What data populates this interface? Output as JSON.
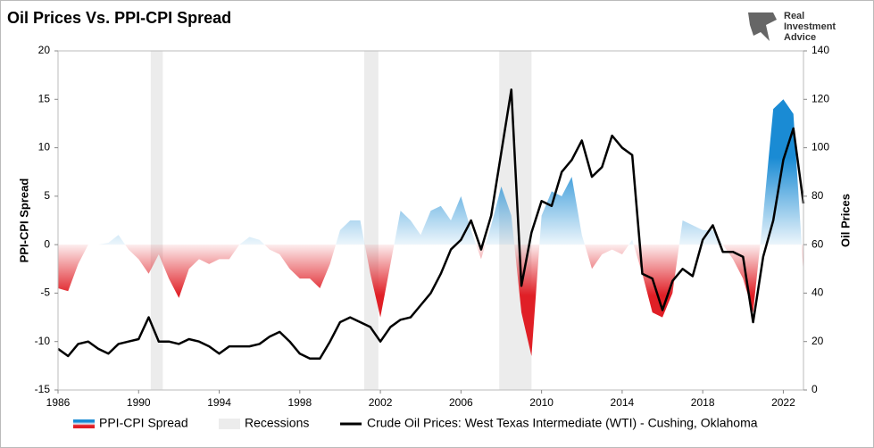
{
  "chart_data": {
    "type": "area",
    "title": "Oil Prices Vs. PPI-CPI Spread",
    "logo_lines": [
      "Real",
      "Investment",
      "Advice"
    ],
    "y_label": "PPI-CPI Spread",
    "y2_label": "Oil Prices",
    "xlim": [
      1986,
      2023
    ],
    "xticks": [
      1986,
      1990,
      1994,
      1998,
      2002,
      2006,
      2010,
      2014,
      2018,
      2022
    ],
    "ylim": [
      -15,
      20
    ],
    "yticks": [
      -15,
      -10,
      -5,
      0,
      5,
      10,
      15,
      20
    ],
    "y2lim": [
      0,
      140
    ],
    "y2ticks": [
      0,
      20,
      40,
      60,
      80,
      100,
      120,
      140
    ],
    "x": [
      1986,
      1986.5,
      1987,
      1987.5,
      1988,
      1988.5,
      1989,
      1989.5,
      1990,
      1990.5,
      1991,
      1991.5,
      1992,
      1992.5,
      1993,
      1993.5,
      1994,
      1994.5,
      1995,
      1995.5,
      1996,
      1996.5,
      1997,
      1997.5,
      1998,
      1998.5,
      1999,
      1999.5,
      2000,
      2000.5,
      2001,
      2001.5,
      2002,
      2002.5,
      2003,
      2003.5,
      2004,
      2004.5,
      2005,
      2005.5,
      2006,
      2006.5,
      2007,
      2007.5,
      2008,
      2008.5,
      2009,
      2009.5,
      2010,
      2010.5,
      2011,
      2011.5,
      2012,
      2012.5,
      2013,
      2013.5,
      2014,
      2014.5,
      2015,
      2015.5,
      2016,
      2016.5,
      2017,
      2017.5,
      2018,
      2018.5,
      2019,
      2019.5,
      2020,
      2020.5,
      2021,
      2021.5,
      2022,
      2022.5,
      2023
    ],
    "recessions": {
      "name": "Recessions",
      "color": "#ececec",
      "spans": [
        [
          1990.6,
          1991.2
        ],
        [
          2001.2,
          2001.9
        ],
        [
          2007.9,
          2009.5
        ]
      ]
    },
    "series": [
      {
        "name": "PPI-CPI Spread",
        "type": "area",
        "axis": "y",
        "color_positive": "#1a8bd4",
        "color_negative": "#e01f26",
        "values": [
          -4.5,
          -4.8,
          -2,
          0,
          0,
          0.2,
          1,
          -0.5,
          -1.5,
          -3,
          -1,
          -3.5,
          -5.5,
          -2.5,
          -1.5,
          -2,
          -1.5,
          -1.5,
          0,
          0.8,
          0.5,
          -0.5,
          -1,
          -2.5,
          -3.5,
          -3.5,
          -4.5,
          -2,
          1.5,
          2.5,
          2.5,
          -3,
          -7.5,
          -2,
          3.5,
          2.5,
          1,
          3.5,
          4,
          2.5,
          5,
          1.5,
          -1.5,
          2,
          6,
          3,
          -7,
          -11.5,
          3,
          5.5,
          5,
          7,
          1,
          -2.5,
          -1,
          -0.5,
          -1,
          0.5,
          -3,
          -7,
          -7.5,
          -5,
          2.5,
          2,
          1.5,
          1.5,
          0,
          -1.5,
          -3.5,
          -7,
          3,
          14,
          15,
          13.5,
          -3
        ]
      },
      {
        "name": "Crude Oil Prices: West Texas Intermediate (WTI) - Cushing, Oklahoma",
        "type": "line",
        "axis": "y2",
        "color": "#000000",
        "values": [
          17,
          14,
          19,
          20,
          17,
          15,
          19,
          20,
          21,
          30,
          20,
          20,
          19,
          21,
          20,
          18,
          15,
          18,
          18,
          18,
          19,
          22,
          24,
          20,
          15,
          13,
          13,
          20,
          28,
          30,
          28,
          26,
          20,
          26,
          29,
          30,
          35,
          40,
          48,
          58,
          62,
          70,
          58,
          72,
          98,
          124,
          43,
          65,
          78,
          76,
          90,
          95,
          103,
          88,
          92,
          105,
          100,
          97,
          48,
          46,
          33,
          45,
          50,
          47,
          62,
          68,
          57,
          57,
          55,
          28,
          55,
          70,
          95,
          108,
          77
        ]
      }
    ]
  }
}
